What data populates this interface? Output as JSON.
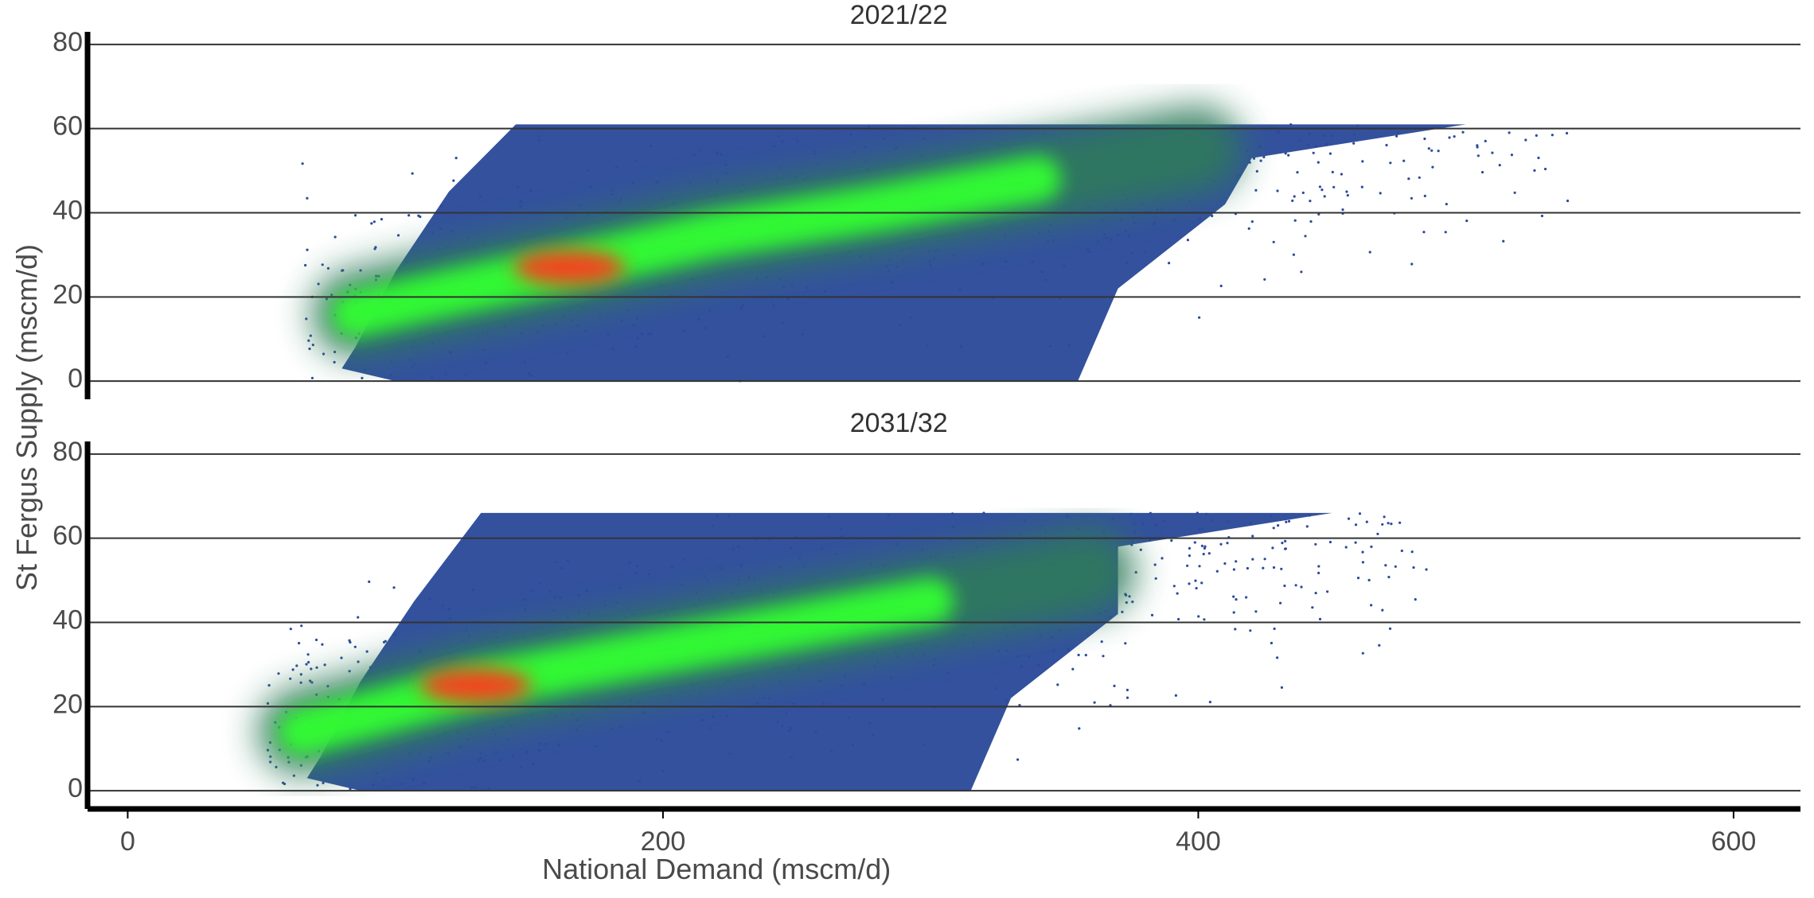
{
  "chart_data": {
    "type": "scatter",
    "xlabel": "National Demand (mscm/d)",
    "ylabel": "St Fergus Supply (mscm/d)",
    "xlim": [
      -15,
      625
    ],
    "ylim": [
      -3,
      83
    ],
    "x_ticks": [
      0,
      200,
      400,
      600
    ],
    "y_ticks": [
      0,
      20,
      40,
      60,
      80
    ],
    "x_tick_labels": [
      "0",
      "200",
      "400",
      "600"
    ],
    "y_tick_labels": [
      "0",
      "20",
      "40",
      "60",
      "80"
    ],
    "grid": "horizontal",
    "colors": {
      "background_density": "#2c4a9a",
      "low_density": "#2e7a5a",
      "mid_density": "#33ff33",
      "high_density": "#ff3b1a",
      "grid": "#333333",
      "axis": "#000000"
    },
    "panels": [
      {
        "title": "2021/22",
        "x_range": [
          65,
          540
        ],
        "y_range": [
          0,
          61
        ],
        "supply_cap": 61,
        "density_ridge": [
          {
            "x": 85,
            "y": 16
          },
          {
            "x": 120,
            "y": 21
          },
          {
            "x": 165,
            "y": 27
          },
          {
            "x": 220,
            "y": 35
          },
          {
            "x": 280,
            "y": 41
          },
          {
            "x": 340,
            "y": 48
          },
          {
            "x": 400,
            "y": 55
          }
        ],
        "density_peak": {
          "x": 165,
          "y": 27
        }
      },
      {
        "title": "2031/32",
        "x_range": [
          52,
          490
        ],
        "y_range": [
          0,
          66
        ],
        "supply_cap": 66,
        "density_ridge": [
          {
            "x": 65,
            "y": 14
          },
          {
            "x": 95,
            "y": 19
          },
          {
            "x": 130,
            "y": 25
          },
          {
            "x": 180,
            "y": 31
          },
          {
            "x": 240,
            "y": 38
          },
          {
            "x": 300,
            "y": 45
          },
          {
            "x": 360,
            "y": 52
          }
        ],
        "density_peak": {
          "x": 130,
          "y": 25
        }
      }
    ]
  }
}
